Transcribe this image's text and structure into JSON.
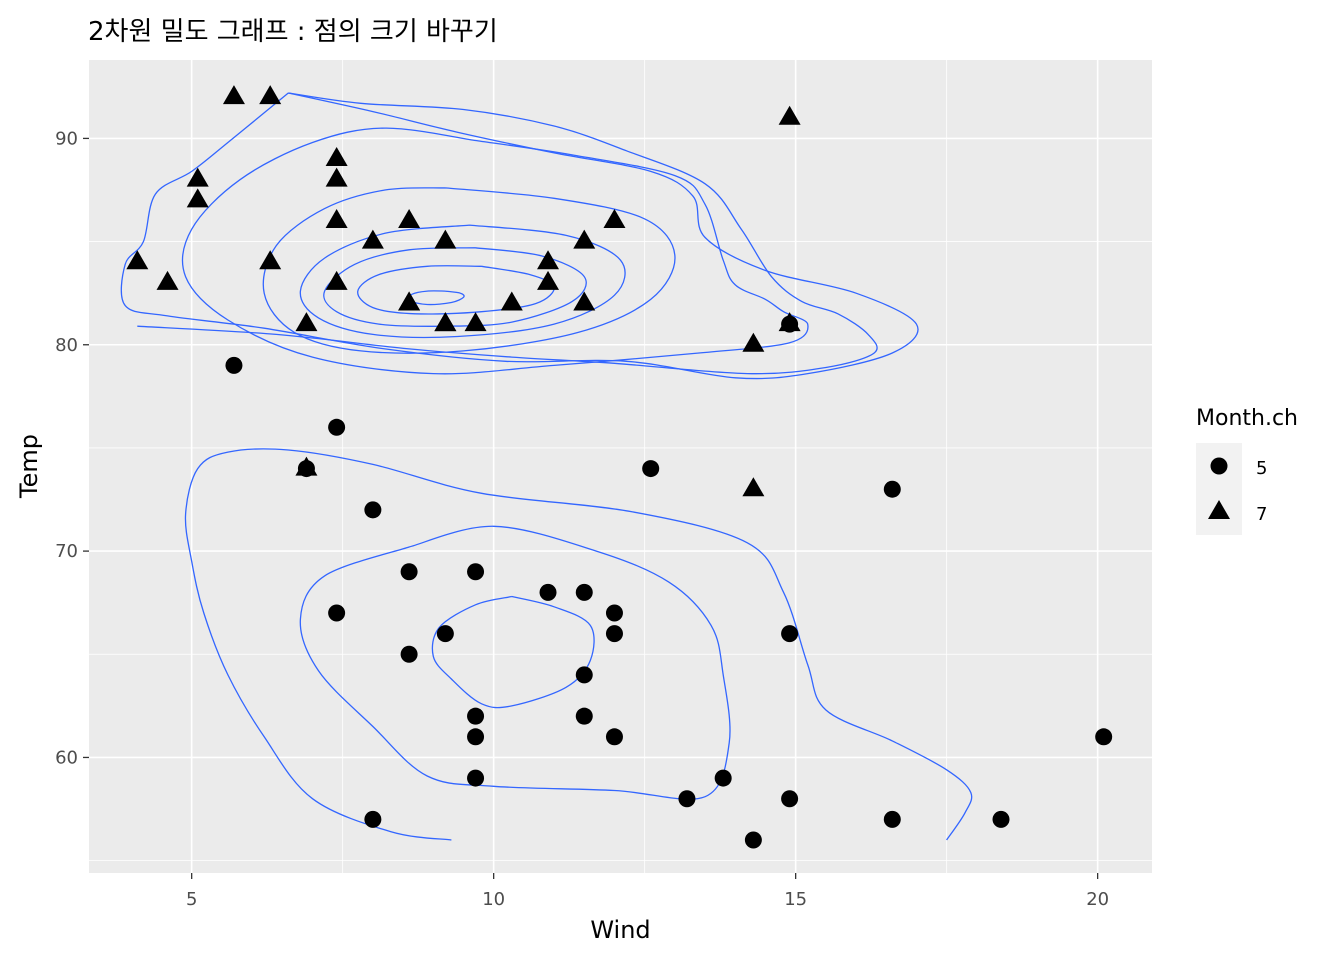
{
  "chart_data": {
    "type": "scatter",
    "title": "2차원 밀도 그래프 : 점의 크기 바꾸기",
    "xlabel": "Wind",
    "ylabel": "Temp",
    "xlim": [
      3.3,
      20.9
    ],
    "ylim": [
      54.4,
      93.8
    ],
    "x_ticks": [
      5,
      10,
      15,
      20
    ],
    "y_ticks": [
      60,
      70,
      80,
      90
    ],
    "grid": true,
    "panel_background": "#EBEBEB",
    "contour_color": "#3366FF",
    "point_color": "#000000",
    "legend": {
      "title": "Month.ch",
      "position": "right",
      "entries": [
        {
          "label": "5",
          "shape": "circle"
        },
        {
          "label": "7",
          "shape": "triangle"
        }
      ]
    },
    "series": [
      {
        "name": "5",
        "shape": "circle",
        "points": [
          [
            7.4,
            67
          ],
          [
            8.0,
            72
          ],
          [
            12.6,
            74
          ],
          [
            11.5,
            62
          ],
          [
            14.3,
            56
          ],
          [
            14.9,
            66
          ],
          [
            8.6,
            65
          ],
          [
            13.8,
            59
          ],
          [
            20.1,
            61
          ],
          [
            8.6,
            69
          ],
          [
            6.9,
            74
          ],
          [
            9.7,
            69
          ],
          [
            9.2,
            66
          ],
          [
            10.9,
            68
          ],
          [
            13.2,
            58
          ],
          [
            11.5,
            64
          ],
          [
            12.0,
            66
          ],
          [
            18.4,
            57
          ],
          [
            11.5,
            68
          ],
          [
            9.7,
            62
          ],
          [
            9.7,
            59
          ],
          [
            16.6,
            73
          ],
          [
            9.7,
            61
          ],
          [
            12.0,
            61
          ],
          [
            16.6,
            57
          ],
          [
            14.9,
            58
          ],
          [
            8.0,
            57
          ],
          [
            12.0,
            67
          ],
          [
            14.9,
            81
          ],
          [
            5.7,
            79
          ],
          [
            7.4,
            76
          ]
        ]
      },
      {
        "name": "7",
        "shape": "triangle",
        "points": [
          [
            4.1,
            84
          ],
          [
            9.2,
            85
          ],
          [
            9.2,
            81
          ],
          [
            10.9,
            84
          ],
          [
            4.6,
            83
          ],
          [
            10.9,
            83
          ],
          [
            5.1,
            88
          ],
          [
            6.3,
            92
          ],
          [
            5.7,
            92
          ],
          [
            7.4,
            89
          ],
          [
            8.6,
            82
          ],
          [
            14.3,
            73
          ],
          [
            14.9,
            81
          ],
          [
            14.9,
            91
          ],
          [
            14.3,
            80
          ],
          [
            6.9,
            81
          ],
          [
            10.3,
            82
          ],
          [
            6.3,
            84
          ],
          [
            5.1,
            87
          ],
          [
            11.5,
            85
          ],
          [
            6.9,
            74
          ],
          [
            9.7,
            81
          ],
          [
            11.5,
            82
          ],
          [
            8.6,
            86
          ],
          [
            8.0,
            85
          ],
          [
            8.6,
            82
          ],
          [
            12.0,
            86
          ],
          [
            7.4,
            88
          ],
          [
            7.4,
            86
          ],
          [
            7.4,
            83
          ],
          [
            9.2,
            81
          ]
        ]
      }
    ],
    "density_contours": [
      [
        [
          9.2,
          82.6
        ],
        [
          9.45,
          82.5
        ],
        [
          9.5,
          82.3
        ],
        [
          9.3,
          82.05
        ],
        [
          8.9,
          81.95
        ],
        [
          8.6,
          82.15
        ],
        [
          8.65,
          82.45
        ],
        [
          8.9,
          82.6
        ],
        [
          9.2,
          82.6
        ]
      ],
      [
        [
          9.8,
          83.8
        ],
        [
          10.6,
          83.4
        ],
        [
          11.0,
          82.8
        ],
        [
          10.7,
          82.0
        ],
        [
          9.8,
          81.6
        ],
        [
          8.7,
          81.5
        ],
        [
          8.0,
          81.8
        ],
        [
          7.75,
          82.6
        ],
        [
          8.1,
          83.4
        ],
        [
          8.9,
          83.8
        ],
        [
          9.8,
          83.8
        ]
      ],
      [
        [
          9.7,
          84.7
        ],
        [
          10.8,
          84.3
        ],
        [
          11.5,
          83.3
        ],
        [
          11.3,
          82.1
        ],
        [
          10.3,
          81.1
        ],
        [
          9.2,
          80.9
        ],
        [
          8.1,
          81.0
        ],
        [
          7.4,
          81.6
        ],
        [
          7.2,
          82.6
        ],
        [
          7.7,
          83.9
        ],
        [
          8.6,
          84.6
        ],
        [
          9.7,
          84.7
        ]
      ],
      [
        [
          9.6,
          85.8
        ],
        [
          11.2,
          85.3
        ],
        [
          12.1,
          84.1
        ],
        [
          12.0,
          82.4
        ],
        [
          11.0,
          81.0
        ],
        [
          9.4,
          80.4
        ],
        [
          8.0,
          80.5
        ],
        [
          7.1,
          81.3
        ],
        [
          6.8,
          82.6
        ],
        [
          7.2,
          84.2
        ],
        [
          8.2,
          85.4
        ],
        [
          9.6,
          85.8
        ]
      ],
      [
        [
          9.2,
          87.6
        ],
        [
          11.0,
          87.1
        ],
        [
          12.5,
          86.1
        ],
        [
          13.0,
          84.3
        ],
        [
          12.6,
          82.2
        ],
        [
          11.4,
          80.6
        ],
        [
          9.5,
          79.7
        ],
        [
          7.8,
          79.7
        ],
        [
          6.7,
          80.6
        ],
        [
          6.2,
          82.5
        ],
        [
          6.4,
          84.8
        ],
        [
          7.2,
          86.6
        ],
        [
          8.2,
          87.5
        ],
        [
          9.2,
          87.6
        ]
      ],
      [
        [
          9.7,
          89.9
        ],
        [
          11.3,
          89.2
        ],
        [
          13.0,
          88.2
        ],
        [
          13.5,
          86.8
        ],
        [
          13.8,
          84.1
        ],
        [
          14.0,
          82.9
        ],
        [
          14.5,
          82.2
        ],
        [
          14.8,
          81.6
        ],
        [
          15.2,
          81.0
        ],
        [
          14.9,
          80.1
        ],
        [
          13.4,
          79.6
        ],
        [
          11.0,
          79.0
        ],
        [
          9.0,
          78.6
        ],
        [
          7.0,
          79.4
        ],
        [
          5.6,
          81.2
        ],
        [
          4.9,
          83.3
        ],
        [
          5.0,
          85.6
        ],
        [
          5.8,
          88.0
        ],
        [
          7.0,
          89.8
        ],
        [
          8.2,
          90.5
        ],
        [
          9.7,
          89.9
        ]
      ],
      [
        [
          6.6,
          92.2
        ],
        [
          8.0,
          91.3
        ],
        [
          9.4,
          90.3
        ],
        [
          11.0,
          89.3
        ],
        [
          12.6,
          88.4
        ],
        [
          13.3,
          87.2
        ],
        [
          13.5,
          85.2
        ],
        [
          14.5,
          83.6
        ],
        [
          16.0,
          82.5
        ],
        [
          17.0,
          81.0
        ],
        [
          16.6,
          79.6
        ],
        [
          15.2,
          78.6
        ],
        [
          14.0,
          78.4
        ],
        [
          12.2,
          79.2
        ],
        [
          10.2,
          79.2
        ],
        [
          8.2,
          79.8
        ],
        [
          6.2,
          80.8
        ],
        [
          4.6,
          81.4
        ],
        [
          3.9,
          81.9
        ],
        [
          3.9,
          83.9
        ],
        [
          4.2,
          85.0
        ],
        [
          4.4,
          87.3
        ],
        [
          5.0,
          88.4
        ],
        [
          5.6,
          89.8
        ],
        [
          6.6,
          92.2
        ]
      ],
      [
        [
          6.6,
          92.2
        ],
        [
          7.8,
          91.7
        ],
        [
          9.5,
          91.4
        ],
        [
          11.0,
          90.6
        ],
        [
          12.2,
          89.4
        ],
        [
          13.5,
          87.8
        ],
        [
          14.1,
          85.6
        ],
        [
          14.6,
          83.3
        ],
        [
          15.1,
          82.1
        ],
        [
          15.7,
          81.5
        ],
        [
          16.2,
          80.5
        ],
        [
          16.3,
          79.6
        ],
        [
          15.5,
          78.9
        ],
        [
          14.2,
          78.6
        ],
        [
          12.0,
          79.1
        ],
        [
          10.3,
          79.4
        ],
        [
          8.6,
          79.8
        ],
        [
          6.4,
          80.5
        ],
        [
          4.1,
          80.9
        ]
      ],
      [
        [
          9.3,
          56.0
        ],
        [
          8.3,
          56.4
        ],
        [
          7.0,
          58.0
        ],
        [
          6.2,
          61.0
        ],
        [
          5.6,
          64.0
        ],
        [
          5.2,
          67.0
        ],
        [
          5.0,
          69.5
        ],
        [
          4.9,
          71.8
        ],
        [
          5.1,
          74.0
        ],
        [
          5.6,
          74.8
        ],
        [
          6.6,
          74.9
        ],
        [
          8.0,
          74.2
        ],
        [
          9.8,
          72.8
        ],
        [
          12.3,
          71.9
        ],
        [
          14.2,
          70.4
        ],
        [
          14.8,
          68.0
        ],
        [
          15.2,
          64.5
        ],
        [
          15.5,
          62.3
        ],
        [
          16.6,
          60.8
        ],
        [
          17.5,
          59.4
        ],
        [
          17.9,
          58.3
        ],
        [
          17.8,
          57.3
        ],
        [
          17.5,
          56.0
        ]
      ],
      [
        [
          8.6,
          70.2
        ],
        [
          10.0,
          71.2
        ],
        [
          11.7,
          70.0
        ],
        [
          12.9,
          68.5
        ],
        [
          13.6,
          66.4
        ],
        [
          13.8,
          64.0
        ],
        [
          13.9,
          60.7
        ],
        [
          13.5,
          58.1
        ],
        [
          12.0,
          58.4
        ],
        [
          10.0,
          58.6
        ],
        [
          8.9,
          59.1
        ],
        [
          8.0,
          61.5
        ],
        [
          7.1,
          64.2
        ],
        [
          6.8,
          66.7
        ],
        [
          7.2,
          68.8
        ],
        [
          8.6,
          70.2
        ]
      ],
      [
        [
          10.3,
          67.8
        ],
        [
          11.0,
          67.3
        ],
        [
          11.6,
          66.4
        ],
        [
          11.6,
          64.7
        ],
        [
          11.2,
          63.4
        ],
        [
          10.3,
          62.5
        ],
        [
          9.8,
          62.6
        ],
        [
          9.3,
          63.8
        ],
        [
          9.0,
          64.9
        ],
        [
          9.1,
          66.3
        ],
        [
          9.7,
          67.4
        ],
        [
          10.3,
          67.8
        ]
      ]
    ]
  }
}
